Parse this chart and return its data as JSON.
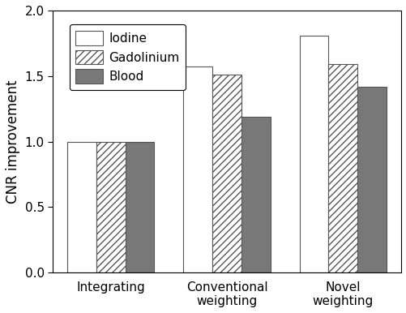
{
  "categories": [
    "Integrating",
    "Conventional\nweighting",
    "Novel\nweighting"
  ],
  "series": {
    "Iodine": [
      1.0,
      1.57,
      1.81
    ],
    "Gadolinium": [
      1.0,
      1.51,
      1.59
    ],
    "Blood": [
      1.0,
      1.19,
      1.42
    ]
  },
  "legend_labels": [
    "Iodine",
    "Gadolinium",
    "Blood"
  ],
  "ylabel": "CNR improvement",
  "ylim": [
    0.0,
    2.0
  ],
  "yticks": [
    0.0,
    0.5,
    1.0,
    1.5,
    2.0
  ],
  "bar_width": 0.25,
  "colors": [
    "#ffffff",
    "#ffffff",
    "#787878"
  ],
  "hatches": [
    null,
    "////",
    null
  ],
  "edgecolor": "#555555",
  "background_color": "#ffffff",
  "axis_fontsize": 12,
  "tick_fontsize": 11,
  "legend_fontsize": 11
}
